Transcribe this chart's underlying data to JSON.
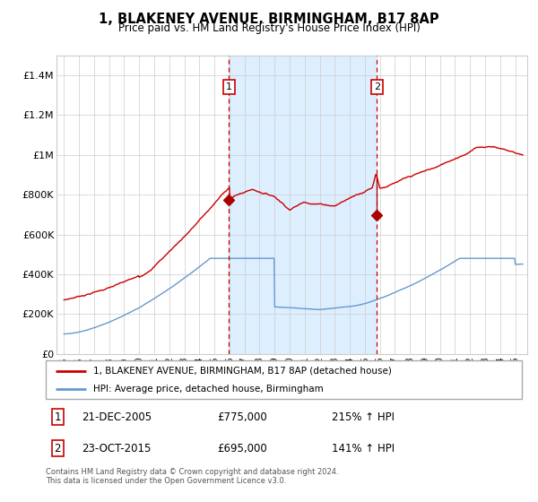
{
  "title": "1, BLAKENEY AVENUE, BIRMINGHAM, B17 8AP",
  "subtitle": "Price paid vs. HM Land Registry's House Price Index (HPI)",
  "footer": "Contains HM Land Registry data © Crown copyright and database right 2024.\nThis data is licensed under the Open Government Licence v3.0.",
  "legend_line1": "1, BLAKENEY AVENUE, BIRMINGHAM, B17 8AP (detached house)",
  "legend_line2": "HPI: Average price, detached house, Birmingham",
  "sale1_date": "21-DEC-2005",
  "sale1_price": "£775,000",
  "sale1_hpi": "215% ↑ HPI",
  "sale1_year": 2005.97,
  "sale1_value": 775000,
  "sale2_date": "23-OCT-2015",
  "sale2_price": "£695,000",
  "sale2_hpi": "141% ↑ HPI",
  "sale2_year": 2015.81,
  "sale2_value": 695000,
  "hpi_color": "#6699cc",
  "price_color": "#cc0000",
  "marker_color": "#aa0000",
  "dashed_color": "#cc0000",
  "shade_color": "#ddeeff",
  "background_color": "#ffffff",
  "grid_color": "#cccccc",
  "ylim": [
    0,
    1500000
  ],
  "xlim_start": 1994.5,
  "xlim_end": 2025.8,
  "yticks": [
    0,
    200000,
    400000,
    600000,
    800000,
    1000000,
    1200000,
    1400000
  ],
  "ylabels": [
    "£0",
    "£200K",
    "£400K",
    "£600K",
    "£800K",
    "£1M",
    "£1.2M",
    "£1.4M"
  ]
}
